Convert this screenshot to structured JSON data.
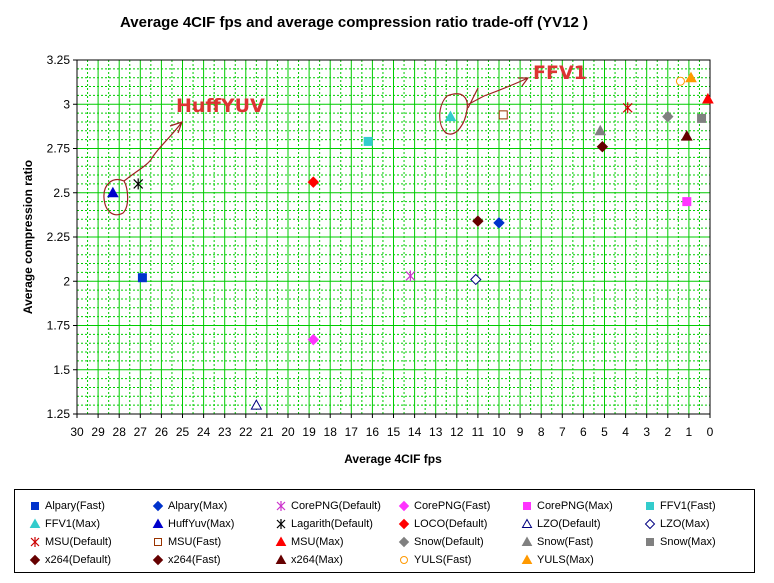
{
  "chart_data": {
    "type": "scatter",
    "title": "Average 4CIF  fps and average compression ratio trade-off (YV12 )",
    "xlabel": "Average 4CIF fps",
    "ylabel": "Average compression ratio",
    "xlim": [
      30,
      0
    ],
    "ylim": [
      1.25,
      3.25
    ],
    "x_reversed": true,
    "x_ticks": [
      30,
      29,
      28,
      27,
      26,
      25,
      24,
      23,
      22,
      21,
      20,
      19,
      18,
      17,
      16,
      15,
      14,
      13,
      12,
      11,
      10,
      9,
      8,
      7,
      6,
      5,
      4,
      3,
      2,
      1,
      0
    ],
    "x_tick_labels": [
      "30",
      "29",
      "28",
      "27",
      "26",
      "25",
      "24",
      "23",
      "22",
      "21",
      "20",
      "19",
      "18",
      "17",
      "16",
      "15",
      "14",
      "13",
      "12",
      "11",
      "10",
      "9",
      "8",
      "7",
      "6",
      "5",
      "4",
      "3",
      "2",
      "1",
      "0"
    ],
    "y_ticks": [
      1.25,
      1.5,
      1.75,
      2,
      2.25,
      2.5,
      2.75,
      3,
      3.25
    ],
    "y_tick_labels": [
      "1.25",
      "1.5",
      "1.75",
      "2",
      "2.25",
      "2.5",
      "2.75",
      "3",
      "3.25"
    ],
    "grid": true,
    "legend_position": "bottom",
    "series": [
      {
        "name": "Alpary(Fast)",
        "marker": "square",
        "fill": "#0033cc",
        "stroke": "#0033cc",
        "points": [
          [
            26.9,
            2.02
          ]
        ]
      },
      {
        "name": "Alpary(Max)",
        "marker": "diamond",
        "fill": "#0033cc",
        "stroke": "#0033cc",
        "points": [
          [
            10.0,
            2.33
          ]
        ]
      },
      {
        "name": "CorePNG(Default)",
        "marker": "asterisk",
        "fill": "none",
        "stroke": "#cc33cc",
        "points": [
          [
            14.2,
            2.03
          ]
        ]
      },
      {
        "name": "CorePNG(Fast)",
        "marker": "diamond",
        "fill": "#ff33ff",
        "stroke": "#ff33ff",
        "points": [
          [
            18.8,
            1.67
          ]
        ]
      },
      {
        "name": "CorePNG(Max)",
        "marker": "square",
        "fill": "#ff33ff",
        "stroke": "#ff33ff",
        "points": [
          [
            1.1,
            2.45
          ]
        ]
      },
      {
        "name": "FFV1(Fast)",
        "marker": "square",
        "fill": "#33cccc",
        "stroke": "#33cccc",
        "points": [
          [
            16.2,
            2.79
          ]
        ]
      },
      {
        "name": "FFV1(Max)",
        "marker": "triangle",
        "fill": "#33cccc",
        "stroke": "#33cccc",
        "points": [
          [
            12.3,
            2.93
          ]
        ]
      },
      {
        "name": "HuffYuv(Max)",
        "marker": "triangle",
        "fill": "#0000cc",
        "stroke": "#0000cc",
        "points": [
          [
            28.3,
            2.5
          ]
        ]
      },
      {
        "name": "Lagarith(Default)",
        "marker": "asterisk",
        "fill": "none",
        "stroke": "#000000",
        "points": [
          [
            27.1,
            2.55
          ]
        ]
      },
      {
        "name": "LOCO(Default)",
        "marker": "diamond",
        "fill": "#ff0000",
        "stroke": "#ff0000",
        "points": [
          [
            18.8,
            2.56
          ]
        ]
      },
      {
        "name": "LZO(Default)",
        "marker": "triangle-open",
        "fill": "none",
        "stroke": "#000080",
        "points": [
          [
            21.5,
            1.3
          ]
        ]
      },
      {
        "name": "LZO(Max)",
        "marker": "diamond-open",
        "fill": "none",
        "stroke": "#000080",
        "points": [
          [
            11.1,
            2.01
          ]
        ]
      },
      {
        "name": "MSU(Default)",
        "marker": "asterisk",
        "fill": "none",
        "stroke": "#cc0000",
        "points": [
          [
            3.9,
            2.98
          ]
        ]
      },
      {
        "name": "MSU(Fast)",
        "marker": "square-open",
        "fill": "none",
        "stroke": "#993300",
        "points": [
          [
            9.8,
            2.94
          ]
        ]
      },
      {
        "name": "MSU(Max)",
        "marker": "triangle",
        "fill": "#ff0000",
        "stroke": "#ff0000",
        "points": [
          [
            0.1,
            3.03
          ]
        ]
      },
      {
        "name": "Snow(Default)",
        "marker": "diamond",
        "fill": "#808080",
        "stroke": "#808080",
        "points": [
          [
            2.0,
            2.93
          ]
        ]
      },
      {
        "name": "Snow(Fast)",
        "marker": "triangle",
        "fill": "#808080",
        "stroke": "#808080",
        "points": [
          [
            5.2,
            2.85
          ]
        ]
      },
      {
        "name": "Snow(Max)",
        "marker": "square",
        "fill": "#808080",
        "stroke": "#808080",
        "points": [
          [
            0.4,
            2.92
          ]
        ]
      },
      {
        "name": "x264(Default)",
        "marker": "diamond",
        "fill": "#660000",
        "stroke": "#660000",
        "points": [
          [
            5.1,
            2.76
          ]
        ]
      },
      {
        "name": "x264(Fast)",
        "marker": "diamond",
        "fill": "#660000",
        "stroke": "#660000",
        "points": [
          [
            11.0,
            2.34
          ]
        ]
      },
      {
        "name": "x264(Max)",
        "marker": "triangle",
        "fill": "#660000",
        "stroke": "#660000",
        "points": [
          [
            1.1,
            2.82
          ]
        ]
      },
      {
        "name": "YULS(Fast)",
        "marker": "circle-open",
        "fill": "none",
        "stroke": "#ff9900",
        "points": [
          [
            1.4,
            3.13
          ]
        ]
      },
      {
        "name": "YULS(Max)",
        "marker": "triangle",
        "fill": "#ff9900",
        "stroke": "#ff9900",
        "points": [
          [
            0.9,
            3.15
          ]
        ]
      }
    ],
    "annotations": [
      {
        "text": "HuffYUV",
        "color": "#dd3333"
      },
      {
        "text": "FFV1",
        "color": "#dd3333"
      }
    ],
    "colors": {
      "plot_background": "#ffffff",
      "grid_major": "#00cc00",
      "grid_minor": "#00cc00",
      "annotation_stroke": "#a02020"
    }
  }
}
